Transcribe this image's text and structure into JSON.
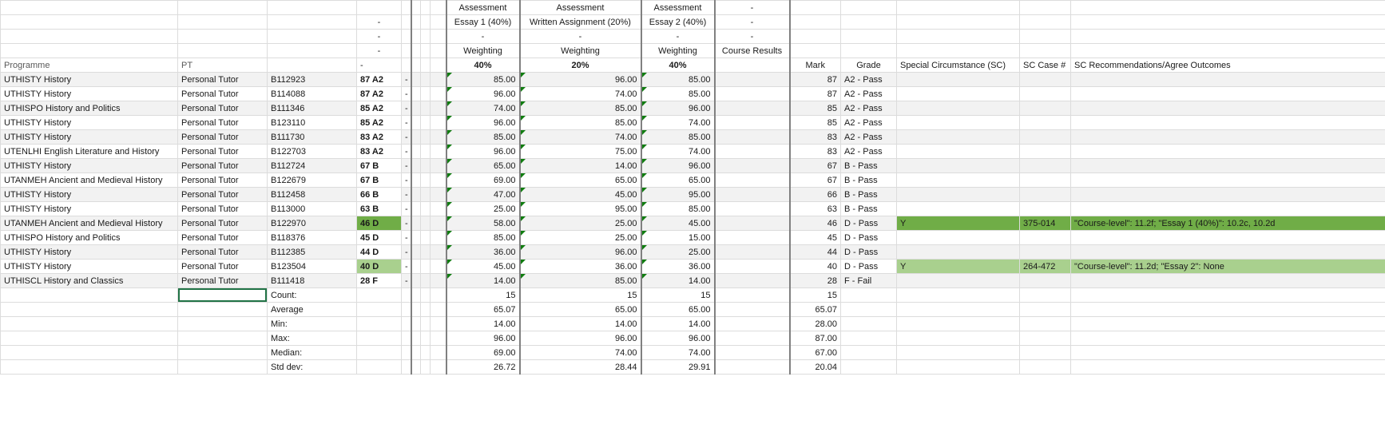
{
  "colors": {
    "grid_border": "#dcdcdc",
    "thick_border": "#808080",
    "shaded_row": "#f2f2f2",
    "highlight_green": "#70ad47",
    "highlight_light_green": "#a9d08e",
    "tick_green": "#107c10",
    "active_outline": "#217346",
    "text": "#1a1a1a",
    "muted_text": "#595959"
  },
  "typography": {
    "font_family": "Arial",
    "font_size_pt": 8
  },
  "header": {
    "r1": {
      "a1": "Assessment",
      "a2": "Assessment",
      "a3": "Assessment",
      "cr": "-"
    },
    "r2": {
      "a1": "Essay 1 (40%)",
      "a2": "Written Assignment (20%)",
      "a3": "Essay 2 (40%)",
      "cr": "-"
    },
    "r3": {
      "a1": "-",
      "a2": "-",
      "a3": "-",
      "cr": "-"
    },
    "r4": {
      "a1": "Weighting",
      "a2": "Weighting",
      "a3": "Weighting",
      "cr": "Course Results"
    },
    "r5": {
      "prog": "Programme",
      "pt": "PT",
      "mark_dash": "-",
      "a1": "40%",
      "a2": "20%",
      "a3": "40%",
      "cm": "Mark",
      "cg": "Grade",
      "sc": "Special Circumstance (SC)",
      "scn": "SC Case #",
      "scr": "SC Recommendations/Agree Outcomes"
    },
    "left_dash": "-"
  },
  "rows": [
    {
      "prog": "UTHISTY History",
      "pt": "Personal Tutor",
      "id": "B112923",
      "mark": "87 A2",
      "a1": "85.00",
      "a2": "96.00",
      "a3": "85.00",
      "cm": "87",
      "cg": "A2 - Pass",
      "sc": "",
      "scn": "",
      "scr": "",
      "shaded": true,
      "hl": ""
    },
    {
      "prog": "UTHISTY History",
      "pt": "Personal Tutor",
      "id": "B114088",
      "mark": "87 A2",
      "a1": "96.00",
      "a2": "74.00",
      "a3": "85.00",
      "cm": "87",
      "cg": "A2 - Pass",
      "sc": "",
      "scn": "",
      "scr": "",
      "shaded": false,
      "hl": ""
    },
    {
      "prog": "UTHISPO History and Politics",
      "pt": "Personal Tutor",
      "id": "B111346",
      "mark": "85 A2",
      "a1": "74.00",
      "a2": "85.00",
      "a3": "96.00",
      "cm": "85",
      "cg": "A2 - Pass",
      "sc": "",
      "scn": "",
      "scr": "",
      "shaded": true,
      "hl": ""
    },
    {
      "prog": "UTHISTY History",
      "pt": "Personal Tutor",
      "id": "B123110",
      "mark": "85 A2",
      "a1": "96.00",
      "a2": "85.00",
      "a3": "74.00",
      "cm": "85",
      "cg": "A2 - Pass",
      "sc": "",
      "scn": "",
      "scr": "",
      "shaded": false,
      "hl": ""
    },
    {
      "prog": "UTHISTY History",
      "pt": "Personal Tutor",
      "id": "B111730",
      "mark": "83 A2",
      "a1": "85.00",
      "a2": "74.00",
      "a3": "85.00",
      "cm": "83",
      "cg": "A2 - Pass",
      "sc": "",
      "scn": "",
      "scr": "",
      "shaded": true,
      "hl": ""
    },
    {
      "prog": "UTENLHI English Literature and History",
      "pt": "Personal Tutor",
      "id": "B122703",
      "mark": "83 A2",
      "a1": "96.00",
      "a2": "75.00",
      "a3": "74.00",
      "cm": "83",
      "cg": "A2 - Pass",
      "sc": "",
      "scn": "",
      "scr": "",
      "shaded": false,
      "hl": ""
    },
    {
      "prog": "UTHISTY History",
      "pt": "Personal Tutor",
      "id": "B112724",
      "mark": "67 B",
      "a1": "65.00",
      "a2": "14.00",
      "a3": "96.00",
      "cm": "67",
      "cg": "B - Pass",
      "sc": "",
      "scn": "",
      "scr": "",
      "shaded": true,
      "hl": ""
    },
    {
      "prog": "UTANMEH Ancient and Medieval History",
      "pt": "Personal Tutor",
      "id": "B122679",
      "mark": "67 B",
      "a1": "69.00",
      "a2": "65.00",
      "a3": "65.00",
      "cm": "67",
      "cg": "B - Pass",
      "sc": "",
      "scn": "",
      "scr": "",
      "shaded": false,
      "hl": ""
    },
    {
      "prog": "UTHISTY History",
      "pt": "Personal Tutor",
      "id": "B112458",
      "mark": "66 B",
      "a1": "47.00",
      "a2": "45.00",
      "a3": "95.00",
      "cm": "66",
      "cg": "B - Pass",
      "sc": "",
      "scn": "",
      "scr": "",
      "shaded": true,
      "hl": ""
    },
    {
      "prog": "UTHISTY History",
      "pt": "Personal Tutor",
      "id": "B113000",
      "mark": "63 B",
      "a1": "25.00",
      "a2": "95.00",
      "a3": "85.00",
      "cm": "63",
      "cg": "B - Pass",
      "sc": "",
      "scn": "",
      "scr": "",
      "shaded": false,
      "hl": ""
    },
    {
      "prog": "UTANMEH Ancient and Medieval History",
      "pt": "Personal Tutor",
      "id": "B122970",
      "mark": "46 D",
      "a1": "58.00",
      "a2": "25.00",
      "a3": "45.00",
      "cm": "46",
      "cg": "D - Pass",
      "sc": "Y",
      "scn": "375-014",
      "scr": "\"Course-level\": 11.2f; \"Essay 1 (40%)\": 10.2c, 10.2d",
      "shaded": true,
      "hl": "green"
    },
    {
      "prog": "UTHISPO History and Politics",
      "pt": "Personal Tutor",
      "id": "B118376",
      "mark": "45 D",
      "a1": "85.00",
      "a2": "25.00",
      "a3": "15.00",
      "cm": "45",
      "cg": "D - Pass",
      "sc": "",
      "scn": "",
      "scr": "",
      "shaded": false,
      "hl": ""
    },
    {
      "prog": "UTHISTY History",
      "pt": "Personal Tutor",
      "id": "B112385",
      "mark": "44 D",
      "a1": "36.00",
      "a2": "96.00",
      "a3": "25.00",
      "cm": "44",
      "cg": "D - Pass",
      "sc": "",
      "scn": "",
      "scr": "",
      "shaded": true,
      "hl": ""
    },
    {
      "prog": "UTHISTY History",
      "pt": "Personal Tutor",
      "id": "B123504",
      "mark": "40 D",
      "a1": "45.00",
      "a2": "36.00",
      "a3": "36.00",
      "cm": "40",
      "cg": "D - Pass",
      "sc": "Y",
      "scn": "264-472",
      "scr": "\"Course-level\": 11.2d; \"Essay 2\": None",
      "shaded": false,
      "hl": "lgreen"
    },
    {
      "prog": "UTHISCL History and Classics",
      "pt": "Personal Tutor",
      "id": "B111418",
      "mark": "28 F",
      "a1": "14.00",
      "a2": "85.00",
      "a3": "14.00",
      "cm": "28",
      "cg": "F - Fail",
      "sc": "",
      "scn": "",
      "scr": "",
      "shaded": true,
      "hl": ""
    }
  ],
  "stats": [
    {
      "label": "Count:",
      "a1": "15",
      "a2": "15",
      "a3": "15",
      "cm": "15",
      "active": true
    },
    {
      "label": "Average",
      "a1": "65.07",
      "a2": "65.00",
      "a3": "65.00",
      "cm": "65.07",
      "active": false
    },
    {
      "label": "Min:",
      "a1": "14.00",
      "a2": "14.00",
      "a3": "14.00",
      "cm": "28.00",
      "active": false
    },
    {
      "label": "Max:",
      "a1": "96.00",
      "a2": "96.00",
      "a3": "96.00",
      "cm": "87.00",
      "active": false
    },
    {
      "label": "Median:",
      "a1": "69.00",
      "a2": "74.00",
      "a3": "74.00",
      "cm": "67.00",
      "active": false
    },
    {
      "label": "Std dev:",
      "a1": "26.72",
      "a2": "28.44",
      "a3": "29.91",
      "cm": "20.04",
      "active": false
    }
  ]
}
